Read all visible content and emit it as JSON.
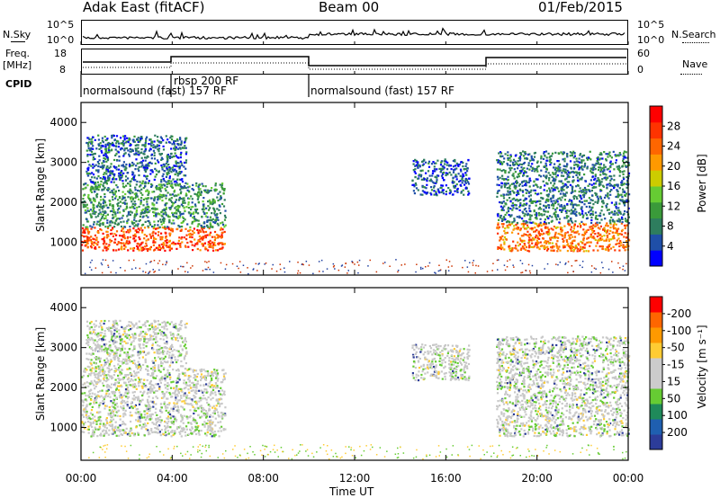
{
  "header": {
    "title": "Adak East (fitACF)",
    "beam": "Beam 00",
    "date": "01/Feb/2015"
  },
  "labels": {
    "nsky": "N.Sky",
    "nsky_tick_hi": "10^5",
    "nsky_tick_lo": "10^0",
    "nsky_tick_hi_r": "10^5",
    "nsky_tick_lo_r": "10^0",
    "nsearch": "N.Search",
    "freq_line1": "Freq.",
    "freq_line2": "[MHz]",
    "freq_tick_hi": "18",
    "freq_tick_lo": "8",
    "nave": "Nave",
    "nave_tick_hi": "60",
    "nave_tick_lo": "0",
    "cpid": "CPID",
    "cpid_seg1": "normalsound (fast) 157 RF",
    "cpid_seg2": "rbsp 200 RF",
    "cpid_seg3": "normalsound (fast) 157 RF",
    "xlabel": "Time UT",
    "ylabel_top": "Slant Range [km]",
    "ylabel_bot": "Slant Range [km]",
    "power_label": "Power [dB]",
    "velocity_label": "Velocity [m s⁻¹]"
  },
  "colors": {
    "power_scale": [
      "#0000ff",
      "#1f4fa8",
      "#2e7d5e",
      "#3a9a3a",
      "#66cc33",
      "#cccc00",
      "#ff9900",
      "#ff6600",
      "#ff3300",
      "#ff0000"
    ],
    "velocity_scale": [
      "#2c3c99",
      "#1f5fb0",
      "#1f8a5a",
      "#66cc33",
      "#cccccc",
      "#cccccc",
      "#ffcc33",
      "#ff9900",
      "#ff6600",
      "#ff0000"
    ],
    "grey": "#bbbbbb",
    "blue": "#1f3fa0"
  },
  "chart_data": [
    {
      "type": "heatmap",
      "name": "power",
      "x_ticks": [
        "00:00",
        "04:00",
        "08:00",
        "12:00",
        "16:00",
        "20:00",
        "00:00"
      ],
      "xlim": [
        0,
        24
      ],
      "y_ticks": [
        "1000",
        "2000",
        "3000",
        "4000"
      ],
      "ylim": [
        180,
        4500
      ],
      "colorbar": {
        "label": "Power [dB]",
        "ticks": [
          "4",
          "8",
          "12",
          "16",
          "20",
          "24",
          "28"
        ],
        "range": [
          0,
          30
        ]
      },
      "regions": [
        {
          "t_start": 0.0,
          "t_end": 6.3,
          "range_low": 800,
          "range_high": 1400,
          "power": 24
        },
        {
          "t_start": 0.0,
          "t_end": 6.3,
          "range_low": 1400,
          "range_high": 2500,
          "power": 9
        },
        {
          "t_start": 0.2,
          "t_end": 4.6,
          "range_low": 2500,
          "range_high": 3700,
          "power": 6
        },
        {
          "t_start": 14.5,
          "t_end": 17.0,
          "range_low": 2200,
          "range_high": 3100,
          "power": 5
        },
        {
          "t_start": 18.2,
          "t_end": 24.0,
          "range_low": 800,
          "range_high": 1500,
          "power": 22
        },
        {
          "t_start": 18.2,
          "t_end": 24.0,
          "range_low": 1500,
          "range_high": 3300,
          "power": 7
        }
      ]
    },
    {
      "type": "heatmap",
      "name": "velocity",
      "x_ticks": [
        "00:00",
        "04:00",
        "08:00",
        "12:00",
        "16:00",
        "20:00",
        "00:00"
      ],
      "xlim": [
        0,
        24
      ],
      "y_ticks": [
        "1000",
        "2000",
        "3000",
        "4000"
      ],
      "ylim": [
        180,
        4500
      ],
      "colorbar": {
        "label": "Velocity [m s⁻¹]",
        "ticks": [
          "200",
          "100",
          "50",
          "15",
          "-15",
          "-50",
          "-100",
          "-200"
        ],
        "range": [
          -250,
          250
        ]
      },
      "regions": [
        {
          "t_start": 0.0,
          "t_end": 6.3,
          "range_low": 800,
          "range_high": 2500,
          "velocity": 0
        },
        {
          "t_start": 0.2,
          "t_end": 4.6,
          "range_low": 2500,
          "range_high": 3700,
          "velocity": 0
        },
        {
          "t_start": 14.5,
          "t_end": 17.0,
          "range_low": 2200,
          "range_high": 3100,
          "velocity": 0
        },
        {
          "t_start": 18.2,
          "t_end": 24.0,
          "range_low": 800,
          "range_high": 3300,
          "velocity": 0
        }
      ]
    }
  ]
}
